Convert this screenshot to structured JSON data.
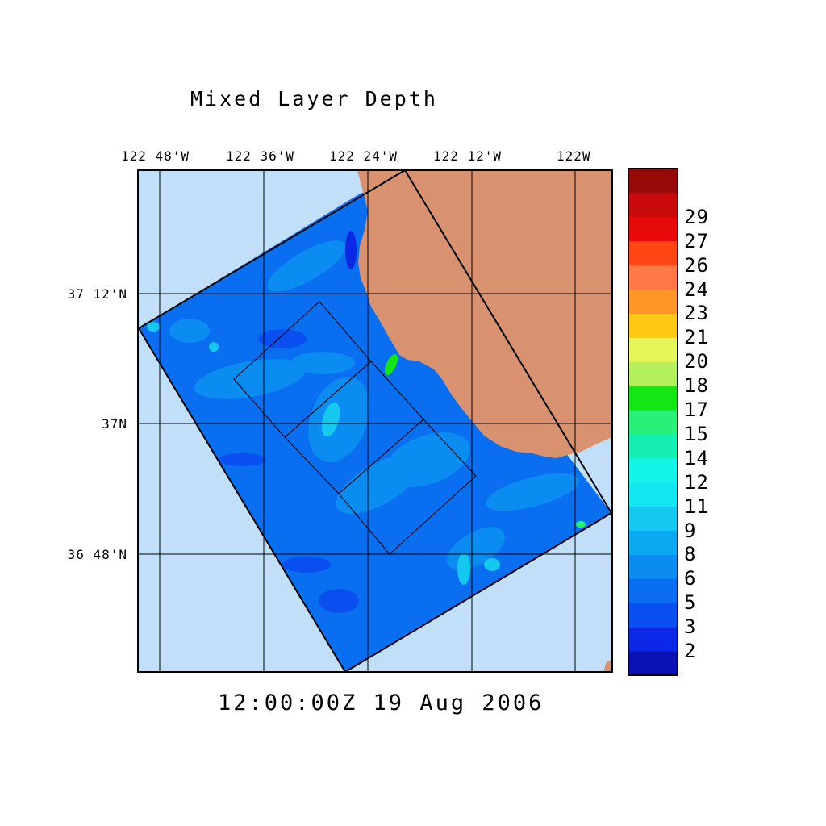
{
  "title": "Mixed Layer Depth",
  "timestamp": "12:00:00Z  19 Aug 2006",
  "longitude_labels": [
    "122 48'W",
    "122 36'W",
    "122 24'W",
    "122 12'W",
    "122W"
  ],
  "latitude_labels": [
    "37 12'N",
    "37N",
    "36 48'N"
  ],
  "colorbar": {
    "labels": [
      "2",
      "3",
      "5",
      "6",
      "8",
      "9",
      "11",
      "12",
      "14",
      "15",
      "17",
      "18",
      "20",
      "21",
      "23",
      "24",
      "26",
      "27",
      "29"
    ],
    "colors_bottom_to_top": [
      "#0a12b4",
      "#0a28e6",
      "#0a50f0",
      "#0a6ef0",
      "#0a8cf0",
      "#0aaaf0",
      "#14c8f0",
      "#14e6f0",
      "#14f5e6",
      "#14f0b4",
      "#28f078",
      "#14e614",
      "#b4f05a",
      "#e6f55a",
      "#ffc814",
      "#ff9628",
      "#ff7846",
      "#ff4614",
      "#e60a0a",
      "#c80a0a",
      "#960a0a"
    ]
  },
  "map": {
    "ocean_color": "#c2dffa",
    "land_color": "#d89270",
    "field_base_color": "#0a6ef0"
  }
}
